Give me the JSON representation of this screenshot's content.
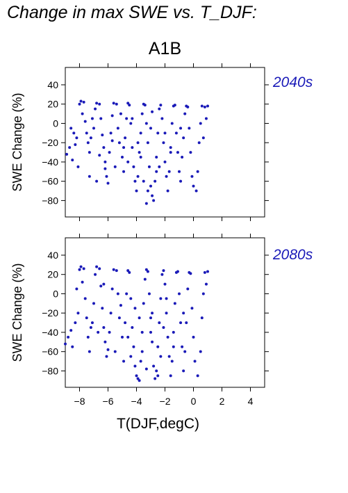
{
  "figure": {
    "title": "Change in max SWE vs. T_DJF:",
    "scenario": "A1B",
    "accent_color": "#1a1ab8"
  },
  "chart_data": [
    {
      "type": "scatter",
      "panel": "2040s",
      "ylabel": "SWE Change (%)",
      "xlabel": "T(DJF,degC)",
      "xlim": [
        -9,
        5
      ],
      "ylim": [
        -97,
        58
      ],
      "xticks": [
        -8,
        -6,
        -4,
        -2,
        0,
        2,
        4
      ],
      "yticks": [
        40,
        20,
        0,
        -20,
        -40,
        -60,
        -80
      ],
      "ytick_labels": [
        "40",
        "20",
        "0",
        "−20",
        "−40",
        "−60",
        "−80"
      ],
      "grid": false,
      "series": [
        {
          "color": "#1a1ab8",
          "points": [
            [
              -8.9,
              -32
            ],
            [
              -8.7,
              -25
            ],
            [
              -8.5,
              -38
            ],
            [
              -8.3,
              -22
            ],
            [
              -8.1,
              -45
            ],
            [
              -8.2,
              -15
            ],
            [
              -8.6,
              -5
            ],
            [
              -8.0,
              20
            ],
            [
              -7.9,
              23
            ],
            [
              -7.7,
              22
            ],
            [
              -7.8,
              10
            ],
            [
              -7.6,
              2
            ],
            [
              -7.5,
              -10
            ],
            [
              -7.4,
              -20
            ],
            [
              -7.3,
              -30
            ],
            [
              -7.2,
              -15
            ],
            [
              -7.0,
              -5
            ],
            [
              -6.9,
              15
            ],
            [
              -6.8,
              21
            ],
            [
              -6.6,
              20
            ],
            [
              -6.5,
              5
            ],
            [
              -6.4,
              -12
            ],
            [
              -6.3,
              -25
            ],
            [
              -6.2,
              -40
            ],
            [
              -6.1,
              -55
            ],
            [
              -6.0,
              -62
            ],
            [
              -6.2,
              -47
            ],
            [
              -5.9,
              -30
            ],
            [
              -5.8,
              -10
            ],
            [
              -5.7,
              8
            ],
            [
              -5.6,
              21
            ],
            [
              -5.4,
              20
            ],
            [
              -5.3,
              -5
            ],
            [
              -5.2,
              -20
            ],
            [
              -5.0,
              -35
            ],
            [
              -4.9,
              -50
            ],
            [
              -4.8,
              -15
            ],
            [
              -4.7,
              5
            ],
            [
              -4.6,
              21
            ],
            [
              -4.5,
              19
            ],
            [
              -4.4,
              0
            ],
            [
              -4.3,
              -25
            ],
            [
              -4.2,
              -45
            ],
            [
              -4.1,
              -60
            ],
            [
              -4.0,
              -70
            ],
            [
              -3.9,
              -55
            ],
            [
              -3.8,
              -30
            ],
            [
              -3.7,
              -10
            ],
            [
              -3.6,
              10
            ],
            [
              -3.5,
              20
            ],
            [
              -3.4,
              19
            ],
            [
              -3.3,
              0
            ],
            [
              -3.2,
              -20
            ],
            [
              -3.1,
              -45
            ],
            [
              -3.0,
              -65
            ],
            [
              -2.9,
              -75
            ],
            [
              -2.8,
              -80
            ],
            [
              -3.3,
              -83
            ],
            [
              -2.7,
              -60
            ],
            [
              -2.6,
              -35
            ],
            [
              -2.5,
              -10
            ],
            [
              -2.4,
              15
            ],
            [
              -2.3,
              19
            ],
            [
              -2.2,
              5
            ],
            [
              -2.1,
              -20
            ],
            [
              -2.0,
              -40
            ],
            [
              -1.9,
              -55
            ],
            [
              -1.8,
              -70
            ],
            [
              -1.7,
              -50
            ],
            [
              -1.6,
              -25
            ],
            [
              -1.5,
              0
            ],
            [
              -1.4,
              18
            ],
            [
              -1.3,
              19
            ],
            [
              -1.2,
              -10
            ],
            [
              -1.1,
              -30
            ],
            [
              -1.0,
              -50
            ],
            [
              -0.9,
              -60
            ],
            [
              -0.8,
              -35
            ],
            [
              -0.7,
              -15
            ],
            [
              -0.6,
              10
            ],
            [
              -0.5,
              18
            ],
            [
              -0.4,
              17
            ],
            [
              -0.3,
              -5
            ],
            [
              -0.2,
              -30
            ],
            [
              -0.1,
              -55
            ],
            [
              0.0,
              -65
            ],
            [
              0.2,
              -70
            ],
            [
              0.3,
              -50
            ],
            [
              0.4,
              -20
            ],
            [
              0.5,
              0
            ],
            [
              0.6,
              18
            ],
            [
              0.8,
              17
            ],
            [
              1.0,
              18
            ],
            [
              0.9,
              5
            ],
            [
              0.7,
              -15
            ],
            [
              -4.6,
              -40
            ],
            [
              -3.9,
              -20
            ],
            [
              -3.0,
              -5
            ],
            [
              -2.6,
              -50
            ],
            [
              -2.0,
              -10
            ],
            [
              -3.5,
              -60
            ],
            [
              -4.3,
              5
            ],
            [
              -5.5,
              -45
            ],
            [
              -6.8,
              -60
            ],
            [
              -7.3,
              -55
            ],
            [
              -8.4,
              -10
            ],
            [
              -7.1,
              5
            ],
            [
              -5.1,
              10
            ],
            [
              -2.9,
              12
            ],
            [
              -1.6,
              -30
            ],
            [
              -0.9,
              -5
            ],
            [
              -3.7,
              -35
            ],
            [
              -2.4,
              -45
            ],
            [
              -4.9,
              -25
            ],
            [
              -3.2,
              -70
            ],
            [
              -6.6,
              -33
            ],
            [
              -5.7,
              -18
            ]
          ]
        }
      ]
    },
    {
      "type": "scatter",
      "panel": "2080s",
      "ylabel": "SWE Change (%)",
      "xlabel": "T(DJF,degC)",
      "xlim": [
        -9,
        5
      ],
      "ylim": [
        -97,
        58
      ],
      "xticks": [
        -8,
        -6,
        -4,
        -2,
        0,
        2,
        4
      ],
      "xtick_labels": [
        "−8",
        "−6",
        "−4",
        "−2",
        "0",
        "2",
        "4"
      ],
      "yticks": [
        40,
        20,
        0,
        -20,
        -40,
        -60,
        -80
      ],
      "ytick_labels": [
        "40",
        "20",
        "0",
        "−20",
        "−40",
        "−60",
        "−80"
      ],
      "grid": false,
      "series": [
        {
          "color": "#1a1ab8",
          "points": [
            [
              -9.0,
              -52
            ],
            [
              -8.8,
              -45
            ],
            [
              -8.6,
              -38
            ],
            [
              -8.5,
              -55
            ],
            [
              -8.3,
              -30
            ],
            [
              -8.1,
              -20
            ],
            [
              -8.0,
              25
            ],
            [
              -7.9,
              28
            ],
            [
              -7.7,
              26
            ],
            [
              -7.8,
              12
            ],
            [
              -7.6,
              -5
            ],
            [
              -7.5,
              -25
            ],
            [
              -7.4,
              -45
            ],
            [
              -7.3,
              -60
            ],
            [
              -7.2,
              -35
            ],
            [
              -7.0,
              -10
            ],
            [
              -6.9,
              20
            ],
            [
              -6.8,
              28
            ],
            [
              -6.6,
              26
            ],
            [
              -6.5,
              8
            ],
            [
              -6.4,
              -15
            ],
            [
              -6.3,
              -35
            ],
            [
              -6.2,
              -50
            ],
            [
              -6.1,
              -65
            ],
            [
              -6.0,
              -58
            ],
            [
              -5.9,
              -40
            ],
            [
              -5.8,
              -20
            ],
            [
              -5.7,
              5
            ],
            [
              -5.6,
              25
            ],
            [
              -5.4,
              24
            ],
            [
              -5.3,
              0
            ],
            [
              -5.2,
              -25
            ],
            [
              -5.0,
              -45
            ],
            [
              -4.9,
              -70
            ],
            [
              -4.8,
              -30
            ],
            [
              -4.7,
              0
            ],
            [
              -4.6,
              24
            ],
            [
              -4.5,
              22
            ],
            [
              -4.4,
              -5
            ],
            [
              -4.3,
              -35
            ],
            [
              -4.2,
              -55
            ],
            [
              -4.1,
              -75
            ],
            [
              -4.0,
              -85
            ],
            [
              -3.9,
              -88
            ],
            [
              -3.8,
              -90
            ],
            [
              -3.7,
              -70
            ],
            [
              -3.6,
              -40
            ],
            [
              -3.5,
              -10
            ],
            [
              -3.4,
              15
            ],
            [
              -3.3,
              25
            ],
            [
              -3.2,
              23
            ],
            [
              -3.1,
              0
            ],
            [
              -3.0,
              -25
            ],
            [
              -2.9,
              -50
            ],
            [
              -2.8,
              -75
            ],
            [
              -2.7,
              -88
            ],
            [
              -2.6,
              -80
            ],
            [
              -2.5,
              -55
            ],
            [
              -2.4,
              -30
            ],
            [
              -2.3,
              -5
            ],
            [
              -2.2,
              20
            ],
            [
              -2.1,
              24
            ],
            [
              -2.0,
              10
            ],
            [
              -1.9,
              -20
            ],
            [
              -1.8,
              -45
            ],
            [
              -1.7,
              -65
            ],
            [
              -1.6,
              -85
            ],
            [
              -1.5,
              -70
            ],
            [
              -1.4,
              -40
            ],
            [
              -1.3,
              -10
            ],
            [
              -1.2,
              22
            ],
            [
              -1.1,
              23
            ],
            [
              -1.0,
              0
            ],
            [
              -0.9,
              -30
            ],
            [
              -0.8,
              -55
            ],
            [
              -0.7,
              -80
            ],
            [
              -0.6,
              -60
            ],
            [
              -0.5,
              -30
            ],
            [
              -0.4,
              5
            ],
            [
              -0.3,
              22
            ],
            [
              -0.2,
              21
            ],
            [
              -0.1,
              -15
            ],
            [
              0.0,
              -45
            ],
            [
              0.1,
              -70
            ],
            [
              0.3,
              -85
            ],
            [
              0.5,
              -60
            ],
            [
              0.6,
              -25
            ],
            [
              0.7,
              0
            ],
            [
              0.8,
              22
            ],
            [
              1.0,
              23
            ],
            [
              0.9,
              10
            ],
            [
              -4.6,
              -45
            ],
            [
              -3.6,
              -60
            ],
            [
              -2.9,
              -20
            ],
            [
              -2.3,
              -65
            ],
            [
              -1.9,
              -5
            ],
            [
              -5.5,
              -60
            ],
            [
              -6.7,
              -40
            ],
            [
              -7.1,
              -30
            ],
            [
              -8.2,
              5
            ],
            [
              -3.8,
              -25
            ],
            [
              -4.1,
              -15
            ],
            [
              -2.5,
              -85
            ],
            [
              -3.3,
              -78
            ],
            [
              -5.1,
              -12
            ],
            [
              -6.3,
              10
            ],
            [
              -1.4,
              -55
            ],
            [
              -0.7,
              -20
            ],
            [
              -3.0,
              -40
            ],
            [
              -4.4,
              -65
            ],
            [
              -2.1,
              -35
            ]
          ]
        }
      ]
    }
  ]
}
